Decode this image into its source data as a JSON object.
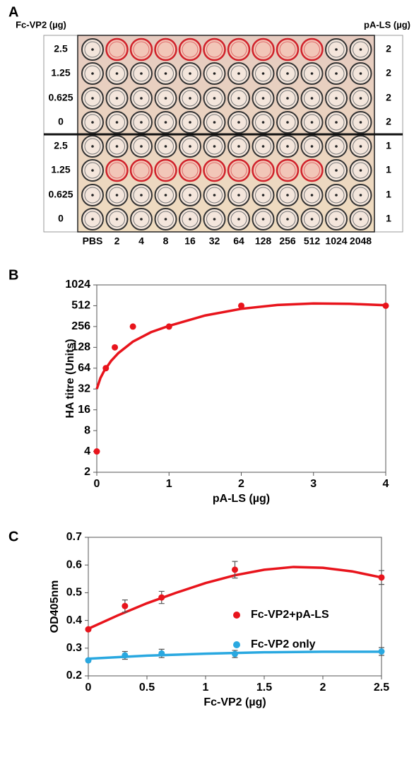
{
  "plate": {
    "label": "A",
    "left_title": "Fc-VP2 (µg)",
    "right_title": "pA-LS (µg)",
    "rows": [
      {
        "fc": "2.5",
        "pa": "2"
      },
      {
        "fc": "1.25",
        "pa": "2"
      },
      {
        "fc": "0.625",
        "pa": "2"
      },
      {
        "fc": "0",
        "pa": "2"
      },
      {
        "fc": "2.5",
        "pa": "1"
      },
      {
        "fc": "1.25",
        "pa": "1"
      },
      {
        "fc": "0.625",
        "pa": "1"
      },
      {
        "fc": "0",
        "pa": "1"
      }
    ],
    "columns": [
      "PBS",
      "2",
      "4",
      "8",
      "16",
      "32",
      "64",
      "128",
      "256",
      "512",
      "1024",
      "2048"
    ]
  },
  "chart_data": [
    {
      "type": "scatter",
      "label": "B",
      "ylabel": "HA titre (Units)",
      "xlabel": "pA-LS (µg)",
      "x": [
        0,
        0.125,
        0.25,
        0.5,
        1,
        2,
        4
      ],
      "values": [
        4,
        64,
        128,
        256,
        256,
        512,
        512
      ],
      "color": "#e8141c",
      "fit": {
        "x": [
          0,
          0.05,
          0.1,
          0.2,
          0.3,
          0.5,
          0.75,
          1,
          1.5,
          2,
          2.5,
          3,
          3.5,
          4
        ],
        "y": [
          32,
          46,
          58,
          82,
          106,
          155,
          212,
          262,
          370,
          462,
          525,
          552,
          545,
          520
        ]
      },
      "xlim": [
        0,
        4
      ],
      "xticks": [
        0,
        1,
        2,
        3,
        4
      ],
      "ylim": [
        2,
        1024
      ],
      "yticks": [
        2,
        4,
        8,
        16,
        32,
        64,
        128,
        256,
        512,
        1024
      ],
      "yscale": "log"
    },
    {
      "type": "scatter",
      "label": "C",
      "ylabel": "OD405nm",
      "xlabel": "Fc-VP2 (µg)",
      "x": [
        0,
        0.3125,
        0.625,
        1.25,
        2.5
      ],
      "series": [
        {
          "name": "Fc-VP2+pA-LS",
          "color": "#e8141c",
          "values": [
            0.368,
            0.452,
            0.483,
            0.583,
            0.555
          ],
          "errors": [
            0.005,
            0.022,
            0.022,
            0.03,
            0.025
          ],
          "fit": {
            "x": [
              0,
              0.25,
              0.5,
              0.75,
              1,
              1.25,
              1.5,
              1.75,
              2,
              2.25,
              2.5
            ],
            "y": [
              0.37,
              0.418,
              0.462,
              0.5,
              0.535,
              0.563,
              0.583,
              0.593,
              0.59,
              0.577,
              0.555
            ]
          }
        },
        {
          "name": "Fc-VP2 only",
          "color": "#29a8e0",
          "values": [
            0.256,
            0.274,
            0.281,
            0.279,
            0.288
          ],
          "errors": [
            0.005,
            0.014,
            0.015,
            0.013,
            0.014
          ],
          "fit": {
            "x": [
              0,
              0.5,
              1,
              1.5,
              2,
              2.5
            ],
            "y": [
              0.262,
              0.273,
              0.28,
              0.285,
              0.287,
              0.287
            ]
          }
        }
      ],
      "xlim": [
        0,
        2.5
      ],
      "xticks": [
        0,
        0.5,
        1,
        1.5,
        2,
        2.5
      ],
      "ylim": [
        0.2,
        0.7
      ],
      "yticks": [
        0.2,
        0.3,
        0.4,
        0.5,
        0.6,
        0.7
      ],
      "legend": "right"
    }
  ]
}
